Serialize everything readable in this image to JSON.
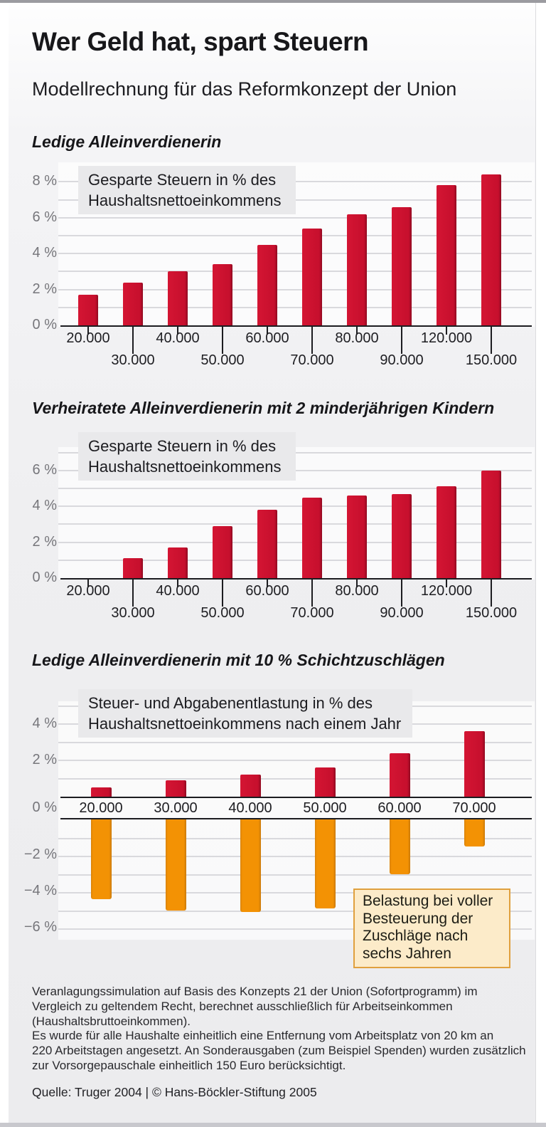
{
  "title": "Wer Geld hat, spart Steuern",
  "subtitle": "Modellrechnung für das Reformkonzept der Union",
  "colors": {
    "bar_red": "#c60f2d",
    "bar_orange": "#f39204",
    "label_box_gray": "#e9e9eb",
    "annotation_bg": "#fcebc9",
    "annotation_border": "#e0a03e",
    "gridline": "#d9d9dd",
    "axis": "#1c1c20",
    "ytick_text": "#76767b"
  },
  "chart_data": [
    {
      "type": "bar",
      "name": "ledige-alleinverdienerin",
      "heading": "Ledige Alleinverdienerin",
      "box_label": "Gesparte Steuern in % des Haushaltsnettoeinkommens",
      "categories": [
        "20.000",
        "30.000",
        "40.000",
        "50.000",
        "60.000",
        "70.000",
        "80.000",
        "90.000",
        "120.000",
        "150.000"
      ],
      "values": [
        1.7,
        2.4,
        3.0,
        3.4,
        4.5,
        5.4,
        6.2,
        6.6,
        7.8,
        8.4
      ],
      "yticks": [
        "0 %",
        "2 %",
        "4 %",
        "6 %",
        "8 %"
      ],
      "ylabel": "Gesparte Steuern in % des Haushaltsnettoeinkommens",
      "ylim": [
        0,
        8.5
      ],
      "grid": "on"
    },
    {
      "type": "bar",
      "name": "verheiratete-alleinverdienerin-2-kinder",
      "heading": "Verheiratete Alleinverdienerin mit 2 minderjährigen Kindern",
      "box_label": "Gesparte Steuern in % des Haushaltsnettoeinkommens",
      "categories": [
        "20.000",
        "30.000",
        "40.000",
        "50.000",
        "60.000",
        "70.000",
        "80.000",
        "90.000",
        "120.000",
        "150.000"
      ],
      "values": [
        0,
        1.1,
        1.7,
        2.9,
        3.8,
        4.5,
        4.6,
        4.7,
        5.1,
        6.0
      ],
      "yticks": [
        "0 %",
        "2 %",
        "4 %",
        "6 %"
      ],
      "ylabel": "Gesparte Steuern in % des Haushaltsnettoeinkommens",
      "ylim": [
        0,
        7
      ],
      "grid": "on"
    },
    {
      "type": "bar",
      "name": "ledige-alleinverdienerin-schichtzuschlaege",
      "heading": "Ledige Alleinverdienerin mit 10 % Schichtzuschlägen",
      "box_label": "Steuer- und Abgabenentlastung in % des Haushaltsnettoeinkommens nach einem Jahr",
      "categories": [
        "20.000",
        "30.000",
        "40.000",
        "50.000",
        "60.000",
        "70.000"
      ],
      "series": [
        {
          "name": "Steuer- und Abgabenentlastung in % des Haushaltsnettoeinkommens nach einem Jahr",
          "color_key": "bar_red",
          "values": [
            0.5,
            0.9,
            1.2,
            1.6,
            2.4,
            3.6
          ]
        },
        {
          "name": "Belastung bei voller Besteuerung der Zuschläge nach sechs Jahren",
          "color_key": "bar_orange",
          "values": [
            -4.4,
            -5.0,
            -5.1,
            -4.9,
            -3.0,
            -1.5
          ]
        }
      ],
      "yticks": [
        "4 %",
        "2 %",
        "0 %",
        "−2 %",
        "−4 %",
        "−6 %"
      ],
      "ylim": [
        -6.5,
        4.5
      ],
      "grid": "on",
      "annotation": "Belastung bei voller Besteuerung der Zuschläge nach sechs Jahren",
      "annotation_lines": [
        "Belastung bei voller",
        "Besteuerung der",
        "Zuschläge nach",
        "sechs Jahren"
      ]
    }
  ],
  "footnote": {
    "lines": [
      "Veranlagungssimulation auf Basis des Konzepts 21 der Union (Sofortprogramm) im",
      "Vergleich zu geltendem Recht, berechnet ausschließlich für Arbeitseinkommen",
      "(Haushaltsbruttoeinkommen).",
      "Es wurde für alle Haushalte einheitlich eine Entfernung vom Arbeitsplatz von 20 km an",
      "220 Arbeitstagen angesetzt. An Sonderausgaben (zum Beispiel Spenden) wurden zusätzlich",
      "zur Vorsorgepauschale einheitlich 150 Euro berücksichtigt."
    ]
  },
  "source": "Quelle: Truger 2004 | © Hans-Böckler-Stiftung 2005"
}
